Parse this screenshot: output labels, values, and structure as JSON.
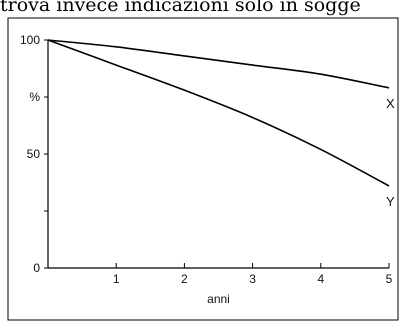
{
  "header_text": "trova invece indicazioni solo in sogge",
  "chart_data": {
    "type": "line",
    "title": "",
    "xlabel": "anni",
    "ylabel": "%",
    "xlim": [
      0,
      5
    ],
    "ylim": [
      0,
      100
    ],
    "x_ticks": [
      {
        "value": 1,
        "label": "1"
      },
      {
        "value": 2,
        "label": "2"
      },
      {
        "value": 3,
        "label": "3"
      },
      {
        "value": 4,
        "label": "4"
      },
      {
        "value": 5,
        "label": "5"
      }
    ],
    "y_ticks": [
      {
        "value": 0,
        "label": "0"
      },
      {
        "value": 25,
        "label": ""
      },
      {
        "value": 50,
        "label": "50"
      },
      {
        "value": 75,
        "label": "%"
      },
      {
        "value": 100,
        "label": "100"
      }
    ],
    "grid": false,
    "legend": "none",
    "series": [
      {
        "name": "X",
        "x": [
          0,
          1,
          2,
          3,
          4,
          5
        ],
        "values": [
          100,
          97,
          93,
          89,
          85,
          79
        ]
      },
      {
        "name": "Y",
        "x": [
          0,
          1,
          2,
          3,
          4,
          5
        ],
        "values": [
          100,
          89,
          78,
          66,
          52,
          36
        ]
      }
    ]
  }
}
